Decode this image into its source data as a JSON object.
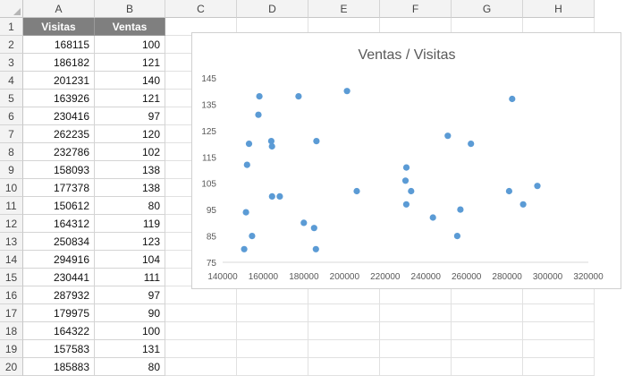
{
  "sheet": {
    "columns": [
      "A",
      "B",
      "C",
      "D",
      "E",
      "F",
      "G",
      "H"
    ],
    "rows": [
      "1",
      "2",
      "3",
      "4",
      "5",
      "6",
      "7",
      "8",
      "9",
      "10",
      "11",
      "12",
      "13",
      "14",
      "15",
      "16",
      "17",
      "18",
      "19",
      "20"
    ],
    "headers": {
      "a": "Visitas",
      "b": "Ventas"
    },
    "data": [
      {
        "a": "168115",
        "b": "100"
      },
      {
        "a": "186182",
        "b": "121"
      },
      {
        "a": "201231",
        "b": "140"
      },
      {
        "a": "163926",
        "b": "121"
      },
      {
        "a": "230416",
        "b": "97"
      },
      {
        "a": "262235",
        "b": "120"
      },
      {
        "a": "232786",
        "b": "102"
      },
      {
        "a": "158093",
        "b": "138"
      },
      {
        "a": "177378",
        "b": "138"
      },
      {
        "a": "150612",
        "b": "80"
      },
      {
        "a": "164312",
        "b": "119"
      },
      {
        "a": "250834",
        "b": "123"
      },
      {
        "a": "294916",
        "b": "104"
      },
      {
        "a": "230441",
        "b": "111"
      },
      {
        "a": "287932",
        "b": "97"
      },
      {
        "a": "179975",
        "b": "90"
      },
      {
        "a": "164322",
        "b": "100"
      },
      {
        "a": "157583",
        "b": "131"
      },
      {
        "a": "185883",
        "b": "80"
      }
    ],
    "header_fill": "#7f7f7f"
  },
  "chart_data": {
    "type": "scatter",
    "title": "Ventas / Visitas",
    "xlabel": "",
    "ylabel": "",
    "xlim": [
      140000,
      320000
    ],
    "ylim": [
      75,
      145
    ],
    "x_ticks": [
      "140000",
      "160000",
      "180000",
      "200000",
      "220000",
      "240000",
      "260000",
      "280000",
      "300000",
      "320000"
    ],
    "y_ticks": [
      "75",
      "85",
      "95",
      "105",
      "115",
      "125",
      "135",
      "145"
    ],
    "grid": false,
    "marker_color": "#5b9bd5",
    "points": [
      [
        168115,
        100
      ],
      [
        186182,
        121
      ],
      [
        201231,
        140
      ],
      [
        163926,
        121
      ],
      [
        230416,
        97
      ],
      [
        262235,
        120
      ],
      [
        232786,
        102
      ],
      [
        158093,
        138
      ],
      [
        177378,
        138
      ],
      [
        150612,
        80
      ],
      [
        164312,
        119
      ],
      [
        250834,
        123
      ],
      [
        294916,
        104
      ],
      [
        230441,
        111
      ],
      [
        287932,
        97
      ],
      [
        179975,
        90
      ],
      [
        164322,
        100
      ],
      [
        157583,
        131
      ],
      [
        185883,
        80
      ],
      [
        151500,
        94
      ],
      [
        152000,
        112
      ],
      [
        153000,
        120
      ],
      [
        154500,
        85
      ],
      [
        185000,
        88
      ],
      [
        206000,
        102
      ],
      [
        230000,
        106
      ],
      [
        243500,
        92
      ],
      [
        255500,
        85
      ],
      [
        257000,
        95
      ],
      [
        281000,
        102
      ],
      [
        282500,
        137
      ]
    ]
  }
}
